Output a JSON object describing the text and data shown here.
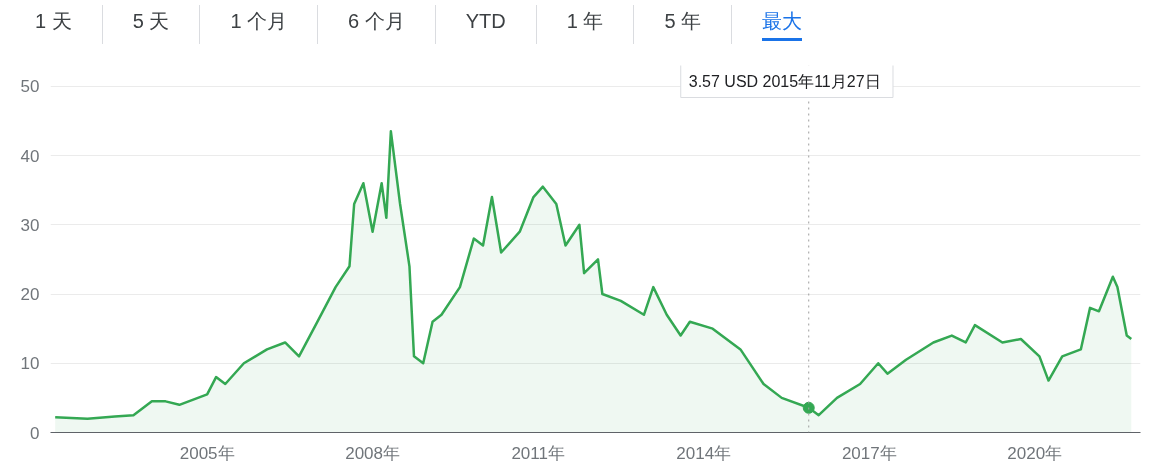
{
  "chart_data": {
    "type": "area",
    "x": [
      "2002-04",
      "2002-11",
      "2003-05",
      "2003-09",
      "2004-01",
      "2004-04",
      "2004-07",
      "2005-01",
      "2005-03",
      "2005-05",
      "2005-09",
      "2006-02",
      "2006-06",
      "2006-09",
      "2007-01",
      "2007-05",
      "2007-08",
      "2007-09",
      "2007-11",
      "2008-01",
      "2008-03",
      "2008-04",
      "2008-05",
      "2008-07",
      "2008-09",
      "2008-10",
      "2008-12",
      "2009-02",
      "2009-04",
      "2009-08",
      "2009-11",
      "2010-01",
      "2010-03",
      "2010-05",
      "2010-09",
      "2010-12",
      "2011-02",
      "2011-05",
      "2011-07",
      "2011-10",
      "2011-11",
      "2012-02",
      "2012-03",
      "2012-07",
      "2012-12",
      "2013-02",
      "2013-05",
      "2013-08",
      "2013-10",
      "2014-03",
      "2014-09",
      "2015-02",
      "2015-06",
      "2015-11-27",
      "2016-02",
      "2016-06",
      "2016-11",
      "2017-03",
      "2017-05",
      "2017-09",
      "2018-03",
      "2018-07",
      "2018-10",
      "2018-12",
      "2019-06",
      "2019-10",
      "2020-02",
      "2020-04",
      "2020-07",
      "2020-11",
      "2021-01",
      "2021-03",
      "2021-06",
      "2021-07",
      "2021-09",
      "2021-10"
    ],
    "series": [
      {
        "color": "#34a853",
        "values": [
          2.2,
          2.0,
          2.3,
          2.5,
          4.5,
          4.5,
          4.0,
          5.5,
          8.0,
          7.0,
          10,
          12,
          13,
          11,
          16,
          21,
          24,
          33,
          36,
          29,
          36,
          31,
          43.5,
          33,
          24,
          11,
          10,
          16,
          17,
          21,
          28,
          27,
          34,
          26,
          29,
          34,
          35.5,
          33,
          27,
          30,
          23,
          25,
          20,
          19,
          17,
          21,
          17,
          14,
          16,
          15,
          12,
          7,
          5,
          3.57,
          2.5,
          5,
          7,
          10,
          8.5,
          10.5,
          13,
          14,
          13,
          15.5,
          13,
          13.5,
          11,
          7.5,
          11,
          12,
          18,
          17.5,
          22.5,
          21,
          14,
          13.5
        ]
      }
    ],
    "xlim": [
      "2002-03",
      "2021-12"
    ],
    "xticks": [
      {
        "value": "2005",
        "label": "2005年"
      },
      {
        "value": "2008",
        "label": "2008年"
      },
      {
        "value": "2011",
        "label": "2011年"
      },
      {
        "value": "2014",
        "label": "2014年"
      },
      {
        "value": "2017",
        "label": "2017年"
      },
      {
        "value": "2020",
        "label": "2020年"
      }
    ],
    "ylim": [
      0,
      53
    ],
    "yticks": [
      0,
      10,
      20,
      30,
      40,
      50
    ],
    "grid": "y",
    "ref_lines": [
      {
        "axis": "x",
        "value": "2015-11-27",
        "line_style": "dotted",
        "color": "#9e9e9e"
      }
    ],
    "annotations": [
      "1 天",
      "5 天",
      "1 个月",
      "6 个月",
      "YTD",
      "1 年",
      "5 年",
      "最大",
      "3.57 USD  2015年11月27日"
    ]
  }
}
